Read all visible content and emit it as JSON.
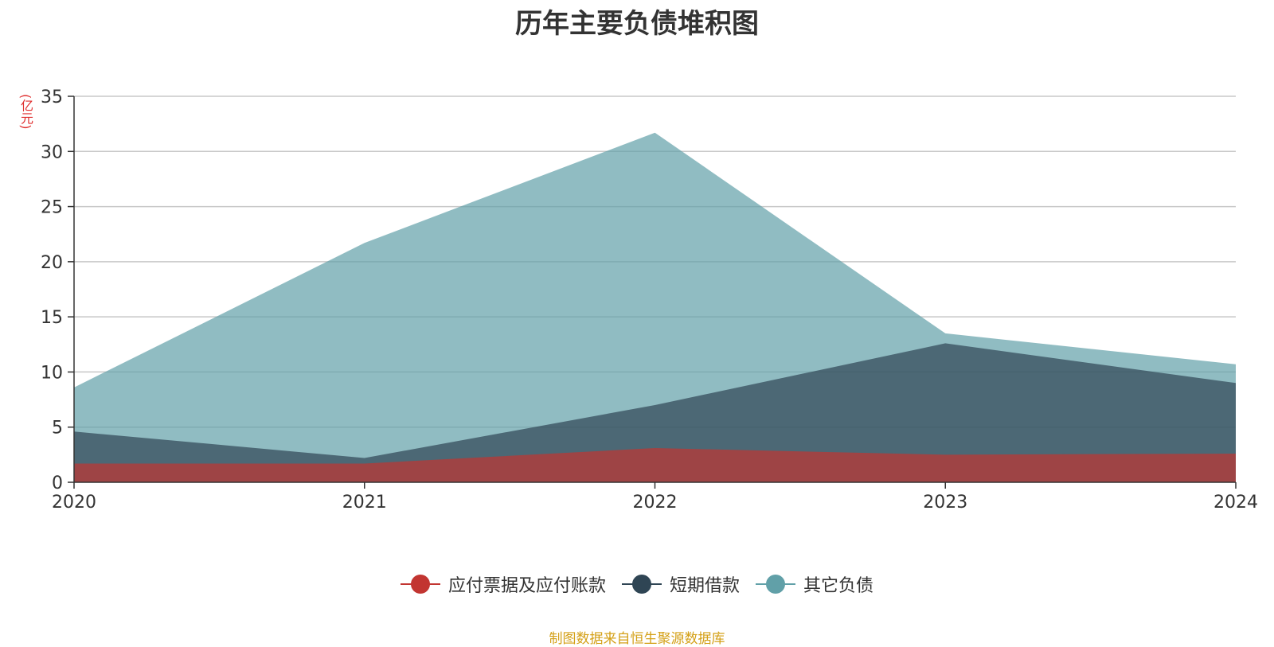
{
  "title": "历年主要负债堆积图",
  "unit_label": "(亿元)",
  "source_note": "制图数据来自恒生聚源数据库",
  "chart_data": {
    "type": "area",
    "stacked": false,
    "title": "历年主要负债堆积图",
    "ylabel": "(亿元)",
    "xlabel": "",
    "categories": [
      "2020",
      "2021",
      "2022",
      "2023",
      "2024"
    ],
    "ylim": [
      0,
      35
    ],
    "yticks": [
      0,
      5,
      10,
      15,
      20,
      25,
      30,
      35
    ],
    "grid": true,
    "legend_position": "bottom",
    "series": [
      {
        "name": "应付票据及应付账款",
        "values": [
          1.7,
          1.7,
          3.1,
          2.5,
          2.6
        ],
        "color": "#c23531"
      },
      {
        "name": "短期借款",
        "values": [
          4.6,
          2.2,
          7.0,
          12.6,
          9.0
        ],
        "color": "#2f4554"
      },
      {
        "name": "其它负债",
        "values": [
          8.6,
          21.7,
          31.7,
          13.5,
          10.7
        ],
        "color": "#61a0a8"
      }
    ]
  }
}
